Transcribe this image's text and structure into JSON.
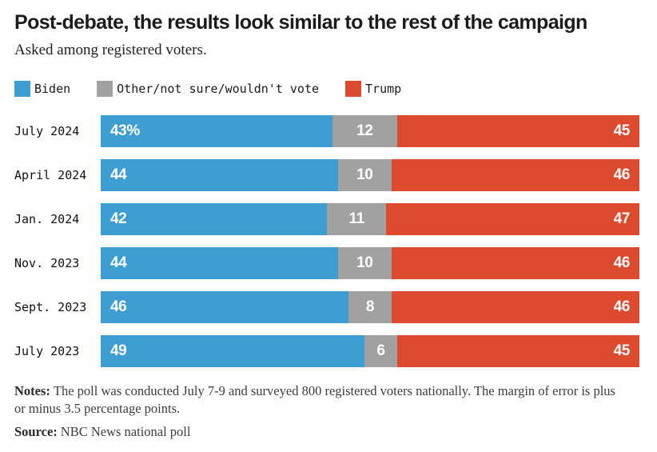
{
  "header": {
    "title": "Post-debate, the results look similar to the rest of the campaign",
    "subtitle": "Asked among registered voters."
  },
  "chart_data": {
    "type": "bar",
    "orientation": "horizontal",
    "stacked": true,
    "title": "Post-debate, the results look similar to the rest of the campaign",
    "categories": [
      "July 2024",
      "April 2024",
      "Jan. 2024",
      "Nov. 2023",
      "Sept. 2023",
      "July 2023"
    ],
    "series": [
      {
        "name": "Biden",
        "color": "#3E9DD1",
        "values": [
          43,
          44,
          42,
          44,
          46,
          49
        ],
        "labels": [
          "43%",
          "44",
          "42",
          "44",
          "46",
          "49"
        ]
      },
      {
        "name": "Other/not sure/wouldn't vote",
        "color": "#A1A1A1",
        "values": [
          12,
          10,
          11,
          10,
          8,
          6
        ],
        "labels": [
          "12",
          "10",
          "11",
          "10",
          "8",
          "6"
        ]
      },
      {
        "name": "Trump",
        "color": "#DE4A2E",
        "values": [
          45,
          46,
          47,
          46,
          46,
          45
        ],
        "labels": [
          "45",
          "46",
          "47",
          "46",
          "46",
          "45"
        ]
      }
    ],
    "xlim": [
      0,
      100
    ],
    "grid": false,
    "legend_position": "top"
  },
  "footer": {
    "notes_label": "Notes:",
    "notes_text": "The poll was conducted July 7-9 and surveyed 800 registered voters nationally. The margin of error is plus or minus 3.5 percentage points.",
    "source_label": "Source:",
    "source_text": "NBC News national poll"
  }
}
